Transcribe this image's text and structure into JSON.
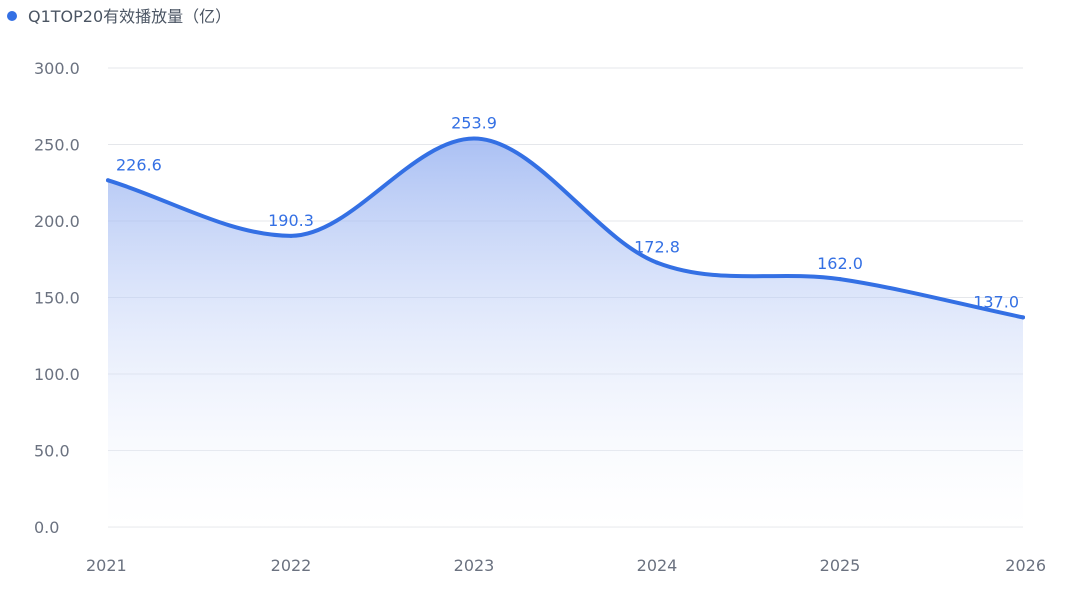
{
  "chart_data": {
    "type": "area",
    "x": [
      "2021",
      "2022",
      "2023",
      "2024",
      "2025",
      "2026"
    ],
    "series": [
      {
        "name": "Q1TOP20有效播放量（亿）",
        "values": [
          226.6,
          190.3,
          253.9,
          172.8,
          162.0,
          137.0
        ],
        "labels": [
          "226.6",
          "190.3",
          "253.9",
          "172.8",
          "162.0",
          "137.0"
        ]
      }
    ],
    "yticks": [
      "0.0",
      "50.0",
      "100.0",
      "150.0",
      "200.0",
      "250.0",
      "300.0"
    ],
    "ylim": [
      0,
      300
    ],
    "grid": true,
    "legend_position": "top-left",
    "colors": {
      "line": "#3470e4",
      "area_top": "#8eabf0",
      "grid": "#e5e7eb",
      "tick_text": "#6b7280",
      "legend_text": "#4b5563"
    }
  }
}
